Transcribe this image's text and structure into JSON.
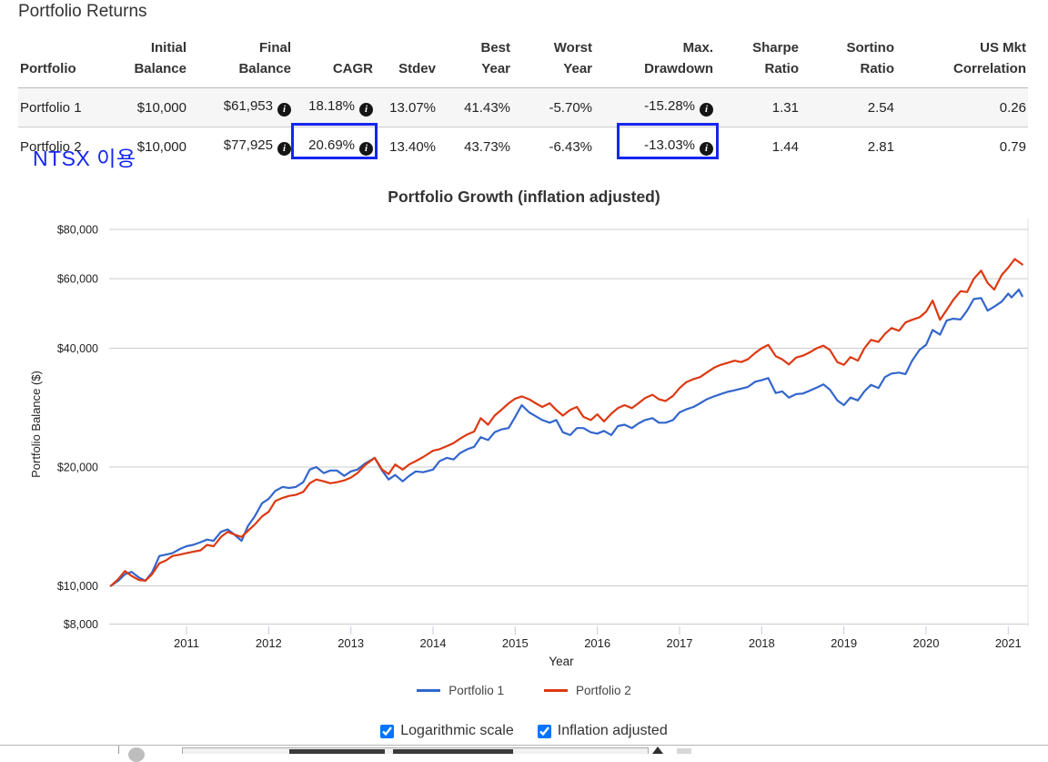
{
  "page": {
    "title": "Portfolio Returns"
  },
  "table": {
    "headers": [
      {
        "l1": "",
        "l2": "Portfolio"
      },
      {
        "l1": "Initial",
        "l2": "Balance"
      },
      {
        "l1": "Final",
        "l2": "Balance"
      },
      {
        "l1": "",
        "l2": "CAGR"
      },
      {
        "l1": "",
        "l2": "Stdev"
      },
      {
        "l1": "Best",
        "l2": "Year"
      },
      {
        "l1": "Worst",
        "l2": "Year"
      },
      {
        "l1": "Max.",
        "l2": "Drawdown"
      },
      {
        "l1": "Sharpe",
        "l2": "Ratio"
      },
      {
        "l1": "Sortino",
        "l2": "Ratio"
      },
      {
        "l1": "US Mkt",
        "l2": "Correlation"
      }
    ],
    "rows": [
      {
        "cells": [
          "Portfolio 1",
          "$10,000",
          {
            "text": "$61,953",
            "info": true
          },
          {
            "text": "18.18%",
            "info": true
          },
          "13.07%",
          "41.43%",
          "-5.70%",
          {
            "text": "-15.28%",
            "info": true
          },
          "1.31",
          "2.54",
          "0.26"
        ]
      },
      {
        "cells": [
          "Portfolio 2",
          "$10,000",
          {
            "text": "$77,925",
            "info": true
          },
          {
            "text": "20.69%",
            "info": true
          },
          "13.40%",
          "43.73%",
          "-6.43%",
          {
            "text": "-13.03%",
            "info": true
          },
          "1.44",
          "2.81",
          "0.79"
        ]
      }
    ]
  },
  "annotations": {
    "note": "NTSX 이용",
    "highlight_color": "#1526f0",
    "boxed_values": [
      "20.69%",
      "-13.03%"
    ]
  },
  "legend": [
    {
      "label": "Portfolio 1",
      "color": "#3366cc"
    },
    {
      "label": "Portfolio 2",
      "color": "#dc3912"
    }
  ],
  "controls": [
    {
      "label": "Logarithmic scale",
      "checked": true
    },
    {
      "label": "Inflation adjusted",
      "checked": true
    }
  ],
  "chart_data": {
    "type": "line",
    "title": "Portfolio Growth (inflation adjusted)",
    "xlabel": "Year",
    "ylabel": "Portfolio Balance ($)",
    "y_scale": "log",
    "grid": true,
    "legend_position": "bottom",
    "x_ticks": [
      2011,
      2012,
      2013,
      2014,
      2015,
      2016,
      2017,
      2018,
      2019,
      2020,
      2021
    ],
    "y_ticks": [
      80000,
      60000,
      40000,
      20000,
      10000,
      8000
    ],
    "x_range": [
      2010.08,
      2021.25
    ],
    "series": [
      {
        "name": "Portfolio 1",
        "color": "#3366cc",
        "points": [
          [
            2010.08,
            10000
          ],
          [
            2010.17,
            10300
          ],
          [
            2010.25,
            10700
          ],
          [
            2010.33,
            10850
          ],
          [
            2010.42,
            10500
          ],
          [
            2010.5,
            10300
          ],
          [
            2010.58,
            10800
          ],
          [
            2010.67,
            11900
          ],
          [
            2010.75,
            12000
          ],
          [
            2010.83,
            12100
          ],
          [
            2010.92,
            12400
          ],
          [
            2011,
            12600
          ],
          [
            2011.08,
            12700
          ],
          [
            2011.17,
            12900
          ],
          [
            2011.25,
            13100
          ],
          [
            2011.33,
            13000
          ],
          [
            2011.42,
            13700
          ],
          [
            2011.5,
            13900
          ],
          [
            2011.58,
            13500
          ],
          [
            2011.67,
            13000
          ],
          [
            2011.75,
            14200
          ],
          [
            2011.83,
            15000
          ],
          [
            2011.92,
            16200
          ],
          [
            2012,
            16600
          ],
          [
            2012.08,
            17400
          ],
          [
            2012.17,
            17800
          ],
          [
            2012.25,
            17700
          ],
          [
            2012.33,
            17800
          ],
          [
            2012.42,
            18300
          ],
          [
            2012.5,
            19700
          ],
          [
            2012.58,
            20000
          ],
          [
            2012.67,
            19300
          ],
          [
            2012.75,
            19600
          ],
          [
            2012.83,
            19600
          ],
          [
            2012.92,
            19000
          ],
          [
            2013,
            19500
          ],
          [
            2013.08,
            19700
          ],
          [
            2013.17,
            20400
          ],
          [
            2013.29,
            21100
          ],
          [
            2013.38,
            19600
          ],
          [
            2013.46,
            18600
          ],
          [
            2013.54,
            19100
          ],
          [
            2013.63,
            18400
          ],
          [
            2013.71,
            19000
          ],
          [
            2013.79,
            19500
          ],
          [
            2013.88,
            19400
          ],
          [
            2014,
            19700
          ],
          [
            2014.08,
            20700
          ],
          [
            2014.17,
            21100
          ],
          [
            2014.25,
            20900
          ],
          [
            2014.33,
            21700
          ],
          [
            2014.42,
            22200
          ],
          [
            2014.5,
            22500
          ],
          [
            2014.58,
            23800
          ],
          [
            2014.67,
            23400
          ],
          [
            2014.75,
            24500
          ],
          [
            2014.83,
            24900
          ],
          [
            2014.92,
            25100
          ],
          [
            2015,
            26800
          ],
          [
            2015.08,
            28700
          ],
          [
            2015.17,
            27500
          ],
          [
            2015.25,
            26900
          ],
          [
            2015.33,
            26300
          ],
          [
            2015.42,
            25900
          ],
          [
            2015.5,
            26300
          ],
          [
            2015.58,
            24500
          ],
          [
            2015.67,
            24100
          ],
          [
            2015.75,
            25100
          ],
          [
            2015.83,
            25100
          ],
          [
            2015.92,
            24500
          ],
          [
            2016,
            24300
          ],
          [
            2016.08,
            24700
          ],
          [
            2016.17,
            24100
          ],
          [
            2016.25,
            25400
          ],
          [
            2016.33,
            25600
          ],
          [
            2016.42,
            25100
          ],
          [
            2016.5,
            25800
          ],
          [
            2016.58,
            26300
          ],
          [
            2016.67,
            26600
          ],
          [
            2016.75,
            25900
          ],
          [
            2016.83,
            25900
          ],
          [
            2016.92,
            26300
          ],
          [
            2017,
            27500
          ],
          [
            2017.08,
            28000
          ],
          [
            2017.17,
            28400
          ],
          [
            2017.25,
            29000
          ],
          [
            2017.33,
            29700
          ],
          [
            2017.42,
            30200
          ],
          [
            2017.5,
            30600
          ],
          [
            2017.58,
            31000
          ],
          [
            2017.67,
            31300
          ],
          [
            2017.75,
            31600
          ],
          [
            2017.83,
            31900
          ],
          [
            2017.92,
            32900
          ],
          [
            2018,
            33200
          ],
          [
            2018.08,
            33600
          ],
          [
            2018.17,
            30800
          ],
          [
            2018.25,
            31100
          ],
          [
            2018.33,
            30000
          ],
          [
            2018.42,
            30600
          ],
          [
            2018.5,
            30700
          ],
          [
            2018.58,
            31200
          ],
          [
            2018.67,
            31800
          ],
          [
            2018.75,
            32400
          ],
          [
            2018.83,
            31400
          ],
          [
            2018.92,
            29500
          ],
          [
            2019,
            28700
          ],
          [
            2019.08,
            30000
          ],
          [
            2019.17,
            29500
          ],
          [
            2019.25,
            31100
          ],
          [
            2019.33,
            32300
          ],
          [
            2019.42,
            31700
          ],
          [
            2019.5,
            33800
          ],
          [
            2019.58,
            34500
          ],
          [
            2019.67,
            34700
          ],
          [
            2019.75,
            34400
          ],
          [
            2019.83,
            37200
          ],
          [
            2019.92,
            39600
          ],
          [
            2020,
            40800
          ],
          [
            2020.08,
            44500
          ],
          [
            2020.17,
            43300
          ],
          [
            2020.25,
            47000
          ],
          [
            2020.33,
            47500
          ],
          [
            2020.42,
            47300
          ],
          [
            2020.5,
            49800
          ],
          [
            2020.58,
            53300
          ],
          [
            2020.67,
            53600
          ],
          [
            2020.75,
            49800
          ],
          [
            2020.83,
            51000
          ],
          [
            2020.92,
            52500
          ],
          [
            2021,
            55000
          ],
          [
            2021.04,
            53800
          ],
          [
            2021.13,
            56300
          ],
          [
            2021.17,
            54200
          ]
        ]
      },
      {
        "name": "Portfolio 2",
        "color": "#dc3912",
        "points": [
          [
            2010.08,
            10000
          ],
          [
            2010.17,
            10400
          ],
          [
            2010.25,
            10900
          ],
          [
            2010.33,
            10600
          ],
          [
            2010.42,
            10350
          ],
          [
            2010.5,
            10300
          ],
          [
            2010.58,
            10700
          ],
          [
            2010.67,
            11400
          ],
          [
            2010.75,
            11600
          ],
          [
            2010.83,
            11900
          ],
          [
            2010.92,
            12000
          ],
          [
            2011,
            12100
          ],
          [
            2011.08,
            12200
          ],
          [
            2011.17,
            12300
          ],
          [
            2011.25,
            12700
          ],
          [
            2011.33,
            12600
          ],
          [
            2011.42,
            13300
          ],
          [
            2011.5,
            13700
          ],
          [
            2011.58,
            13500
          ],
          [
            2011.67,
            13300
          ],
          [
            2011.75,
            13800
          ],
          [
            2011.83,
            14300
          ],
          [
            2011.92,
            15000
          ],
          [
            2012,
            15400
          ],
          [
            2012.08,
            16400
          ],
          [
            2012.17,
            16700
          ],
          [
            2012.25,
            16900
          ],
          [
            2012.33,
            17000
          ],
          [
            2012.42,
            17300
          ],
          [
            2012.5,
            18200
          ],
          [
            2012.58,
            18600
          ],
          [
            2012.67,
            18400
          ],
          [
            2012.75,
            18200
          ],
          [
            2012.83,
            18300
          ],
          [
            2012.92,
            18500
          ],
          [
            2013,
            18800
          ],
          [
            2013.08,
            19300
          ],
          [
            2013.17,
            20200
          ],
          [
            2013.29,
            21100
          ],
          [
            2013.38,
            19700
          ],
          [
            2013.46,
            19200
          ],
          [
            2013.54,
            20300
          ],
          [
            2013.63,
            19700
          ],
          [
            2013.71,
            20300
          ],
          [
            2013.79,
            20700
          ],
          [
            2013.88,
            21200
          ],
          [
            2014,
            22000
          ],
          [
            2014.08,
            22200
          ],
          [
            2014.17,
            22600
          ],
          [
            2014.25,
            23000
          ],
          [
            2014.33,
            23600
          ],
          [
            2014.42,
            24200
          ],
          [
            2014.5,
            24600
          ],
          [
            2014.58,
            26600
          ],
          [
            2014.67,
            25600
          ],
          [
            2014.75,
            27000
          ],
          [
            2014.83,
            27900
          ],
          [
            2014.92,
            29000
          ],
          [
            2015,
            29800
          ],
          [
            2015.08,
            30200
          ],
          [
            2015.17,
            29700
          ],
          [
            2015.25,
            29000
          ],
          [
            2015.33,
            28400
          ],
          [
            2015.42,
            29000
          ],
          [
            2015.5,
            27900
          ],
          [
            2015.58,
            27000
          ],
          [
            2015.67,
            27900
          ],
          [
            2015.75,
            28400
          ],
          [
            2015.83,
            26800
          ],
          [
            2015.92,
            26300
          ],
          [
            2016,
            27200
          ],
          [
            2016.08,
            26100
          ],
          [
            2016.17,
            27300
          ],
          [
            2016.25,
            28200
          ],
          [
            2016.33,
            28700
          ],
          [
            2016.42,
            28200
          ],
          [
            2016.5,
            29000
          ],
          [
            2016.58,
            29900
          ],
          [
            2016.67,
            30500
          ],
          [
            2016.75,
            29700
          ],
          [
            2016.83,
            29400
          ],
          [
            2016.92,
            30300
          ],
          [
            2017,
            31700
          ],
          [
            2017.08,
            32800
          ],
          [
            2017.17,
            33400
          ],
          [
            2017.25,
            33800
          ],
          [
            2017.33,
            34700
          ],
          [
            2017.42,
            35700
          ],
          [
            2017.5,
            36300
          ],
          [
            2017.58,
            36700
          ],
          [
            2017.67,
            37200
          ],
          [
            2017.75,
            36900
          ],
          [
            2017.83,
            37500
          ],
          [
            2017.92,
            38900
          ],
          [
            2018,
            40000
          ],
          [
            2018.08,
            40800
          ],
          [
            2018.17,
            38200
          ],
          [
            2018.25,
            37500
          ],
          [
            2018.33,
            36400
          ],
          [
            2018.42,
            37900
          ],
          [
            2018.5,
            38300
          ],
          [
            2018.58,
            39000
          ],
          [
            2018.67,
            40000
          ],
          [
            2018.75,
            40600
          ],
          [
            2018.83,
            39600
          ],
          [
            2018.92,
            36900
          ],
          [
            2019,
            36300
          ],
          [
            2019.08,
            38000
          ],
          [
            2019.17,
            37200
          ],
          [
            2019.25,
            40000
          ],
          [
            2019.33,
            42000
          ],
          [
            2019.42,
            41500
          ],
          [
            2019.5,
            43500
          ],
          [
            2019.58,
            45000
          ],
          [
            2019.67,
            44300
          ],
          [
            2019.75,
            46500
          ],
          [
            2019.83,
            47200
          ],
          [
            2019.92,
            47900
          ],
          [
            2020,
            49500
          ],
          [
            2020.08,
            52800
          ],
          [
            2020.17,
            47200
          ],
          [
            2020.25,
            50000
          ],
          [
            2020.33,
            53000
          ],
          [
            2020.42,
            55800
          ],
          [
            2020.5,
            55500
          ],
          [
            2020.58,
            60000
          ],
          [
            2020.67,
            62900
          ],
          [
            2020.75,
            58500
          ],
          [
            2020.83,
            56300
          ],
          [
            2020.92,
            61300
          ],
          [
            2021,
            64000
          ],
          [
            2021.08,
            67300
          ],
          [
            2021.17,
            65200
          ]
        ]
      }
    ]
  }
}
